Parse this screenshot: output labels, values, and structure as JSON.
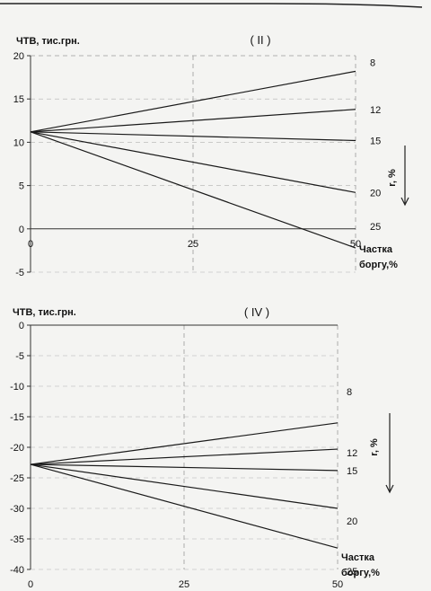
{
  "chart_data": [
    {
      "type": "line",
      "title": "( II )",
      "ylabel": "ЧТВ, тис.грн.",
      "xlabel_line1": "Частка",
      "xlabel_line2": "боргу,%",
      "r_label": "r, %",
      "x": [
        0,
        50
      ],
      "xticks": [
        0,
        25,
        50
      ],
      "yticks": [
        20,
        15,
        10,
        5,
        0,
        -5
      ],
      "ylim": [
        -5,
        20
      ],
      "xlim": [
        0,
        50
      ],
      "grid": true,
      "series": [
        {
          "name": "8",
          "values": [
            11.2,
            18.2
          ]
        },
        {
          "name": "12",
          "values": [
            11.2,
            13.8
          ]
        },
        {
          "name": "15",
          "values": [
            11.2,
            10.2
          ]
        },
        {
          "name": "20",
          "values": [
            11.2,
            4.2
          ]
        },
        {
          "name": "25",
          "values": [
            11.2,
            -2.2
          ]
        }
      ]
    },
    {
      "type": "line",
      "title": "( IV )",
      "ylabel": "ЧТВ, тис.грн.",
      "xlabel_line1": "Частка",
      "xlabel_line2": "боргу,%",
      "r_label": "r, %",
      "x": [
        0,
        50
      ],
      "xticks": [
        0,
        25,
        50
      ],
      "yticks": [
        0,
        -5,
        -10,
        -15,
        -20,
        -25,
        -30,
        -35,
        -40
      ],
      "ylim": [
        -40,
        0
      ],
      "xlim": [
        0,
        50
      ],
      "grid": true,
      "series": [
        {
          "name": "8",
          "values": [
            -22.8,
            -16.0
          ]
        },
        {
          "name": "12",
          "values": [
            -22.8,
            -20.3
          ]
        },
        {
          "name": "15",
          "values": [
            -22.8,
            -23.8
          ]
        },
        {
          "name": "20",
          "values": [
            -22.8,
            -30.0
          ]
        },
        {
          "name": "25",
          "values": [
            -22.8,
            -36.5
          ]
        }
      ]
    }
  ]
}
